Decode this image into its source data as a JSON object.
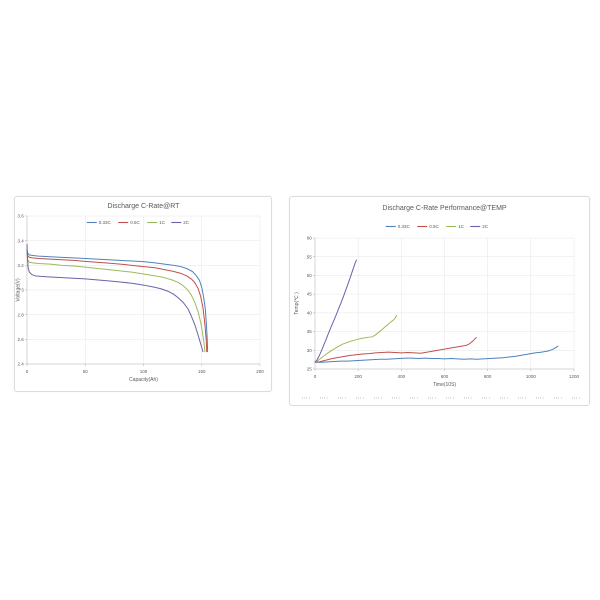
{
  "page": {
    "background": "#ffffff"
  },
  "palette": {
    "blue": "#4F81BD",
    "red": "#C0504D",
    "green": "#9BBB59",
    "purple": "#6A63A9",
    "grid": "#e3e3e3",
    "axis": "#b8b8b8",
    "text": "#595959"
  },
  "chart_data": [
    {
      "type": "line",
      "title": "Discharge C-Rate@RT",
      "xlabel": "Capacity(Ah)",
      "ylabel": "Voltage(V)",
      "xlim": [
        0,
        200
      ],
      "ylim": [
        2.4,
        3.6
      ],
      "xticks": [
        "0",
        "50",
        "100",
        "150",
        "200"
      ],
      "yticks": [
        "2.4",
        "2.6",
        "2.8",
        "3",
        "3.2",
        "3.4",
        "3.6"
      ],
      "grid": true,
      "legend_position": "top",
      "series": [
        {
          "name": "0.33C",
          "color": "#4F81BD",
          "points": [
            [
              0,
              3.33
            ],
            [
              0.5,
              3.3
            ],
            [
              2,
              3.285
            ],
            [
              5,
              3.28
            ],
            [
              10,
              3.275
            ],
            [
              20,
              3.27
            ],
            [
              30,
              3.265
            ],
            [
              40,
              3.26
            ],
            [
              50,
              3.255
            ],
            [
              60,
              3.25
            ],
            [
              70,
              3.245
            ],
            [
              80,
              3.24
            ],
            [
              90,
              3.235
            ],
            [
              100,
              3.23
            ],
            [
              110,
              3.22
            ],
            [
              118,
              3.21
            ],
            [
              126,
              3.2
            ],
            [
              132,
              3.19
            ],
            [
              138,
              3.17
            ],
            [
              142,
              3.15
            ],
            [
              145,
              3.12
            ],
            [
              148,
              3.08
            ],
            [
              150,
              3.02
            ],
            [
              151.5,
              2.95
            ],
            [
              153,
              2.85
            ],
            [
              154,
              2.72
            ],
            [
              154.8,
              2.58
            ],
            [
              155,
              2.5
            ]
          ]
        },
        {
          "name": "0.5C",
          "color": "#C0504D",
          "points": [
            [
              0,
              3.32
            ],
            [
              0.5,
              3.28
            ],
            [
              2,
              3.265
            ],
            [
              5,
              3.26
            ],
            [
              10,
              3.255
            ],
            [
              20,
              3.25
            ],
            [
              30,
              3.245
            ],
            [
              40,
              3.24
            ],
            [
              50,
              3.232
            ],
            [
              60,
              3.225
            ],
            [
              70,
              3.218
            ],
            [
              80,
              3.21
            ],
            [
              90,
              3.2
            ],
            [
              100,
              3.19
            ],
            [
              110,
              3.18
            ],
            [
              118,
              3.165
            ],
            [
              126,
              3.15
            ],
            [
              132,
              3.135
            ],
            [
              137,
              3.115
            ],
            [
              141,
              3.09
            ],
            [
              144,
              3.06
            ],
            [
              147,
              3.01
            ],
            [
              149,
              2.95
            ],
            [
              151,
              2.86
            ],
            [
              152.5,
              2.74
            ],
            [
              153.8,
              2.6
            ],
            [
              154.3,
              2.5
            ]
          ]
        },
        {
          "name": "1C",
          "color": "#9BBB59",
          "points": [
            [
              0,
              3.3
            ],
            [
              0.5,
              3.245
            ],
            [
              2,
              3.225
            ],
            [
              5,
              3.22
            ],
            [
              10,
              3.215
            ],
            [
              20,
              3.21
            ],
            [
              30,
              3.2
            ],
            [
              40,
              3.195
            ],
            [
              50,
              3.185
            ],
            [
              60,
              3.175
            ],
            [
              70,
              3.165
            ],
            [
              80,
              3.155
            ],
            [
              90,
              3.145
            ],
            [
              100,
              3.13
            ],
            [
              110,
              3.115
            ],
            [
              118,
              3.1
            ],
            [
              125,
              3.08
            ],
            [
              130,
              3.06
            ],
            [
              134,
              3.035
            ],
            [
              138,
              3.0
            ],
            [
              141,
              2.96
            ],
            [
              144,
              2.9
            ],
            [
              147,
              2.82
            ],
            [
              149.5,
              2.72
            ],
            [
              151.5,
              2.6
            ],
            [
              152.8,
              2.5
            ]
          ]
        },
        {
          "name": "2C",
          "color": "#6A63A9",
          "points": [
            [
              0,
              3.37
            ],
            [
              0.3,
              3.28
            ],
            [
              1,
              3.18
            ],
            [
              2,
              3.145
            ],
            [
              4,
              3.125
            ],
            [
              7,
              3.115
            ],
            [
              12,
              3.11
            ],
            [
              20,
              3.105
            ],
            [
              30,
              3.1
            ],
            [
              40,
              3.095
            ],
            [
              50,
              3.09
            ],
            [
              60,
              3.082
            ],
            [
              70,
              3.074
            ],
            [
              80,
              3.065
            ],
            [
              90,
              3.055
            ],
            [
              100,
              3.04
            ],
            [
              108,
              3.025
            ],
            [
              115,
              3.01
            ],
            [
              121,
              2.99
            ],
            [
              126,
              2.965
            ],
            [
              130,
              2.935
            ],
            [
              134,
              2.9
            ],
            [
              138,
              2.85
            ],
            [
              141,
              2.79
            ],
            [
              144,
              2.72
            ],
            [
              147,
              2.63
            ],
            [
              149.5,
              2.55
            ],
            [
              151,
              2.5
            ]
          ]
        }
      ]
    },
    {
      "type": "line",
      "title": "Discharge C-Rate Performance@TEMP",
      "xlabel": "Time(10S)",
      "ylabel": "Temp(℃ )",
      "xlim": [
        0,
        1200
      ],
      "ylim": [
        25,
        60
      ],
      "xticks": [
        "0",
        "200",
        "400",
        "600",
        "800",
        "1000",
        "1200"
      ],
      "yticks": [
        "25",
        "30",
        "35",
        "40",
        "45",
        "50",
        "55",
        "60"
      ],
      "grid": true,
      "legend_position": "top",
      "series": [
        {
          "name": "0.33C",
          "color": "#4F81BD",
          "points": [
            [
              0,
              26.8
            ],
            [
              30,
              26.8
            ],
            [
              60,
              26.9
            ],
            [
              90,
              27.0
            ],
            [
              120,
              27.1
            ],
            [
              150,
              27.1
            ],
            [
              180,
              27.2
            ],
            [
              210,
              27.3
            ],
            [
              240,
              27.4
            ],
            [
              270,
              27.5
            ],
            [
              300,
              27.6
            ],
            [
              330,
              27.6
            ],
            [
              360,
              27.7
            ],
            [
              390,
              27.8
            ],
            [
              420,
              27.9
            ],
            [
              450,
              27.9
            ],
            [
              480,
              27.8
            ],
            [
              510,
              27.9
            ],
            [
              540,
              27.8
            ],
            [
              570,
              27.8
            ],
            [
              600,
              27.7
            ],
            [
              630,
              27.8
            ],
            [
              660,
              27.7
            ],
            [
              690,
              27.6
            ],
            [
              720,
              27.7
            ],
            [
              750,
              27.6
            ],
            [
              780,
              27.7
            ],
            [
              810,
              27.8
            ],
            [
              840,
              27.9
            ],
            [
              870,
              28.0
            ],
            [
              900,
              28.2
            ],
            [
              930,
              28.4
            ],
            [
              960,
              28.7
            ],
            [
              990,
              29.0
            ],
            [
              1020,
              29.3
            ],
            [
              1050,
              29.5
            ],
            [
              1080,
              29.8
            ],
            [
              1100,
              30.2
            ],
            [
              1115,
              30.7
            ],
            [
              1125,
              31.1
            ]
          ]
        },
        {
          "name": "0.5C",
          "color": "#C0504D",
          "points": [
            [
              0,
              26.8
            ],
            [
              20,
              26.9
            ],
            [
              40,
              27.2
            ],
            [
              60,
              27.5
            ],
            [
              80,
              27.8
            ],
            [
              100,
              28.0
            ],
            [
              130,
              28.3
            ],
            [
              160,
              28.6
            ],
            [
              190,
              28.8
            ],
            [
              220,
              29.0
            ],
            [
              250,
              29.1
            ],
            [
              280,
              29.3
            ],
            [
              310,
              29.4
            ],
            [
              340,
              29.5
            ],
            [
              370,
              29.4
            ],
            [
              400,
              29.3
            ],
            [
              430,
              29.4
            ],
            [
              460,
              29.3
            ],
            [
              490,
              29.2
            ],
            [
              520,
              29.5
            ],
            [
              550,
              29.8
            ],
            [
              580,
              30.1
            ],
            [
              610,
              30.4
            ],
            [
              640,
              30.7
            ],
            [
              670,
              31.0
            ],
            [
              700,
              31.3
            ],
            [
              715,
              31.7
            ],
            [
              730,
              32.4
            ],
            [
              740,
              33.0
            ],
            [
              747,
              33.4
            ]
          ]
        },
        {
          "name": "1C",
          "color": "#9BBB59",
          "points": [
            [
              0,
              26.8
            ],
            [
              15,
              27.3
            ],
            [
              30,
              28.0
            ],
            [
              50,
              28.9
            ],
            [
              70,
              29.7
            ],
            [
              90,
              30.4
            ],
            [
              110,
              31.1
            ],
            [
              130,
              31.7
            ],
            [
              150,
              32.1
            ],
            [
              170,
              32.5
            ],
            [
              190,
              32.8
            ],
            [
              210,
              33.1
            ],
            [
              230,
              33.3
            ],
            [
              250,
              33.5
            ],
            [
              265,
              33.6
            ],
            [
              280,
              34.1
            ],
            [
              295,
              34.8
            ],
            [
              310,
              35.5
            ],
            [
              325,
              36.3
            ],
            [
              340,
              37.0
            ],
            [
              352,
              37.6
            ],
            [
              362,
              38.0
            ],
            [
              370,
              38.5
            ],
            [
              378,
              39.3
            ]
          ]
        },
        {
          "name": "2C",
          "color": "#6A63A9",
          "points": [
            [
              0,
              26.8
            ],
            [
              10,
              27.5
            ],
            [
              20,
              28.6
            ],
            [
              30,
              29.9
            ],
            [
              40,
              31.3
            ],
            [
              50,
              32.7
            ],
            [
              60,
              34.2
            ],
            [
              70,
              35.6
            ],
            [
              80,
              37.0
            ],
            [
              90,
              38.3
            ],
            [
              100,
              39.7
            ],
            [
              110,
              41.2
            ],
            [
              120,
              42.6
            ],
            [
              130,
              44.1
            ],
            [
              140,
              45.7
            ],
            [
              150,
              47.3
            ],
            [
              160,
              48.9
            ],
            [
              170,
              50.6
            ],
            [
              180,
              52.3
            ],
            [
              188,
              53.6
            ],
            [
              192,
              54.1
            ]
          ]
        }
      ]
    }
  ]
}
